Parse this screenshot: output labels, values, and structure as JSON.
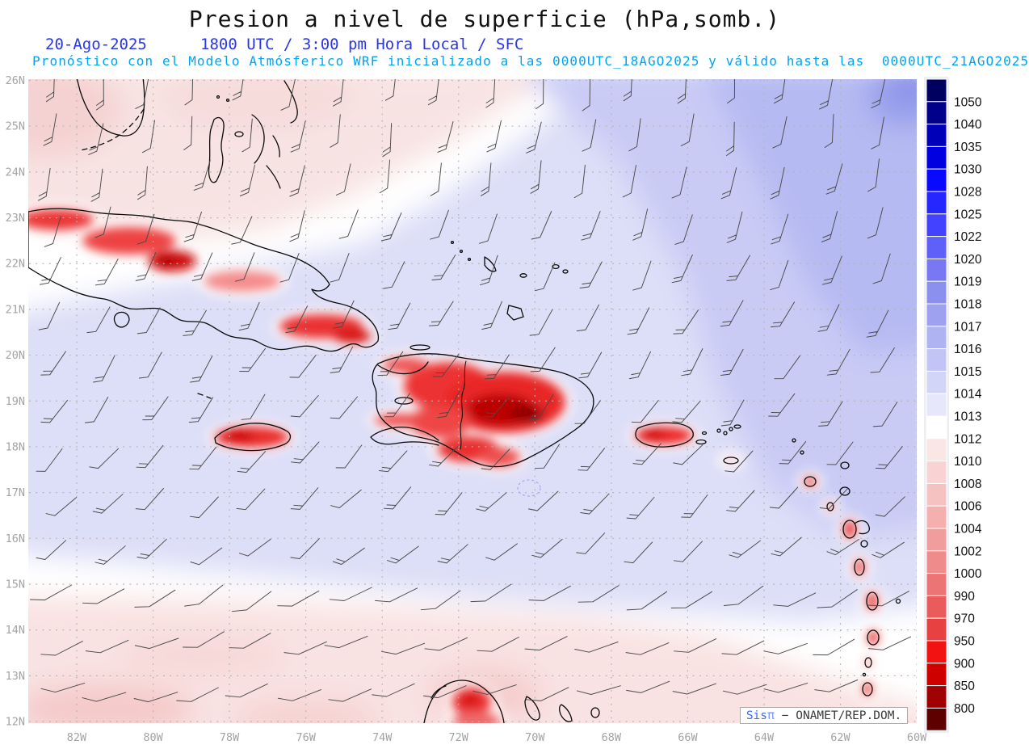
{
  "header": {
    "title": "Presion a nivel de superficie (hPa,somb.)",
    "date": "20-Ago-2025",
    "time_line": "1800 UTC / 3:00 pm Hora Local / SFC",
    "forecast_line": "Pronóstico con el Modelo Atmósferico WRF inicializado a las 0000UTC_18AGO2025 y válido hasta las  0000UTC_21AGO2025"
  },
  "colors": {
    "title_black": "#111111",
    "date_blue": "#2a35e6",
    "forecast_cyan": "#00a3f0",
    "axis_gray": "#a3a3a3",
    "coastline": "#0a0a0a",
    "wind_barb": "#4a4a4a",
    "grid_dots": "#b3b3b3"
  },
  "map": {
    "lat_labels": [
      "26N",
      "25N",
      "24N",
      "23N",
      "22N",
      "21N",
      "20N",
      "19N",
      "18N",
      "17N",
      "16N",
      "15N",
      "14N",
      "13N",
      "12N"
    ],
    "lon_labels": [
      "82W",
      "80W",
      "78W",
      "76W",
      "74W",
      "72W",
      "70W",
      "68W",
      "66W",
      "64W",
      "62W",
      "60W"
    ]
  },
  "colorbar": {
    "labels": [
      "1050",
      "1040",
      "1035",
      "1030",
      "1028",
      "1025",
      "1022",
      "1020",
      "1019",
      "1018",
      "1017",
      "1016",
      "1015",
      "1014",
      "1013",
      "1012",
      "1010",
      "1008",
      "1006",
      "1004",
      "1002",
      "1000",
      "990",
      "970",
      "950",
      "900",
      "850",
      "800"
    ],
    "cells": [
      "#000060",
      "#00008b",
      "#0000b8",
      "#0000e0",
      "#0909ff",
      "#2626ff",
      "#4343ff",
      "#5f5ffa",
      "#7878f4",
      "#8b90ee",
      "#9da1ef",
      "#afb3f1",
      "#c1c4f4",
      "#d3d5f7",
      "#e6e7fb",
      "#ffffff",
      "#fbe6e6",
      "#f9d3d3",
      "#f6c1c1",
      "#f4afaf",
      "#f19d9d",
      "#ef8b8b",
      "#ec7474",
      "#ea5b5b",
      "#e84141",
      "#f31212",
      "#cf0000",
      "#a00000",
      "#5e0000"
    ]
  },
  "watermark": {
    "brand": "Sis",
    "pi": "π",
    "rest": " − ONAMET/REP.DOM."
  },
  "chart_data": {
    "type": "heatmap",
    "title": "Presion a nivel de superficie (hPa,somb.)",
    "valid_time": "20-Ago-2025 1800 UTC / 3:00 pm Hora Local / SFC",
    "model_run": "WRF inicializado 0000UTC_18AGO2025, válido hasta 0000UTC_21AGO2025",
    "lat_range_deg_n": [
      12,
      26
    ],
    "lon_range_deg_w": [
      83.3,
      60
    ],
    "colorbar_levels_hpa": [
      800,
      850,
      900,
      950,
      970,
      990,
      1000,
      1002,
      1004,
      1006,
      1008,
      1010,
      1012,
      1013,
      1014,
      1015,
      1016,
      1017,
      1018,
      1019,
      1020,
      1022,
      1025,
      1028,
      1030,
      1035,
      1040,
      1050
    ],
    "field_summary": "High pressure (1016-1020 hPa, blue shading) over the Atlantic NE quadrant; near 1013-1015 hPa (white/lavender) across the central Caribbean; lower pressure (1008-1012 hPa, pink) NW near Florida/Gulf and along the southern Caribbean; heated-island thermal lows (below 1006 hPa, red) over Cuba, Jamaica, Hispaniola, Puerto Rico, the Lesser Antilles and the Guajira peninsula; easterly trade-wind barbs throughout"
  }
}
